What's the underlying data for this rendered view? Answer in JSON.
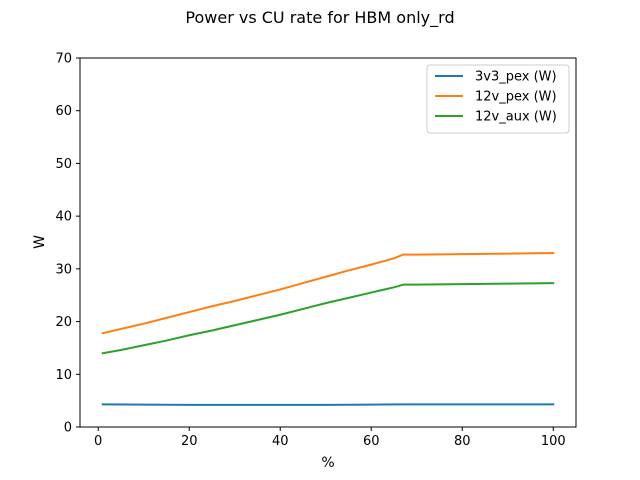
{
  "chart_data": {
    "type": "line",
    "title": "Power vs CU rate for HBM only_rd",
    "xlabel": "%",
    "ylabel": "W",
    "xlim": [
      -4,
      105
    ],
    "ylim": [
      0,
      70
    ],
    "xticks": [
      0,
      20,
      40,
      60,
      80,
      100
    ],
    "yticks": [
      0,
      10,
      20,
      30,
      40,
      50,
      60,
      70
    ],
    "grid": false,
    "legend_position": "top-right",
    "series": [
      {
        "name": "3v3_pex (W)",
        "color": "#1f77b4",
        "x": [
          1,
          10,
          20,
          30,
          40,
          50,
          60,
          67,
          70,
          80,
          90,
          100
        ],
        "y": [
          4.3,
          4.25,
          4.2,
          4.2,
          4.2,
          4.2,
          4.25,
          4.3,
          4.3,
          4.3,
          4.3,
          4.3
        ]
      },
      {
        "name": "12v_pex (W)",
        "color": "#ff7f0e",
        "x": [
          1,
          5,
          10,
          15,
          20,
          25,
          30,
          35,
          40,
          45,
          50,
          55,
          60,
          65,
          67,
          70,
          80,
          90,
          100
        ],
        "y": [
          17.8,
          18.6,
          19.6,
          20.7,
          21.8,
          22.9,
          23.9,
          25.0,
          26.1,
          27.3,
          28.5,
          29.7,
          30.8,
          32.0,
          32.7,
          32.7,
          32.8,
          32.9,
          33.0
        ]
      },
      {
        "name": "12v_aux (W)",
        "color": "#2ca02c",
        "x": [
          1,
          5,
          10,
          15,
          20,
          25,
          30,
          35,
          40,
          45,
          50,
          55,
          60,
          65,
          67,
          70,
          80,
          90,
          100
        ],
        "y": [
          14.0,
          14.6,
          15.5,
          16.4,
          17.4,
          18.3,
          19.3,
          20.3,
          21.3,
          22.4,
          23.5,
          24.5,
          25.5,
          26.5,
          27.0,
          27.0,
          27.1,
          27.2,
          27.3
        ]
      }
    ]
  }
}
